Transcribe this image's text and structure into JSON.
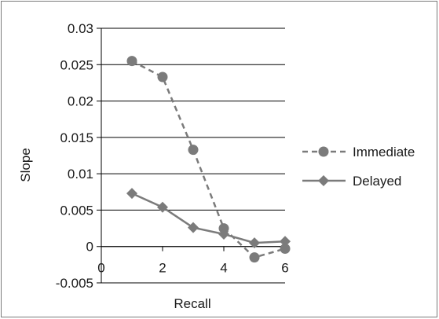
{
  "chart_data": {
    "type": "line",
    "title": "",
    "xlabel": "Recall",
    "ylabel": "Slope",
    "xlim": [
      0,
      6
    ],
    "ylim": [
      -0.005,
      0.03
    ],
    "x_ticks": [
      "0",
      "2",
      "4",
      "6"
    ],
    "y_ticks": [
      "0.03",
      "0.025",
      "0.02",
      "0.015",
      "0.01",
      "0.005",
      "0",
      "-0.005"
    ],
    "grid": "horizontal",
    "legend_position": "right",
    "series": [
      {
        "name": "Immediate",
        "marker": "circle",
        "line_style": "dashed",
        "color": "#7b7b7b",
        "x": [
          1,
          2,
          3,
          4,
          5,
          6
        ],
        "y": [
          0.0255,
          0.0233,
          0.0133,
          0.0025,
          -0.0015,
          -0.0003
        ]
      },
      {
        "name": "Delayed",
        "marker": "diamond",
        "line_style": "solid",
        "color": "#7b7b7b",
        "x": [
          1,
          2,
          3,
          4,
          5,
          6
        ],
        "y": [
          0.0073,
          0.0054,
          0.0026,
          0.0017,
          0.0005,
          0.0007
        ]
      }
    ]
  }
}
